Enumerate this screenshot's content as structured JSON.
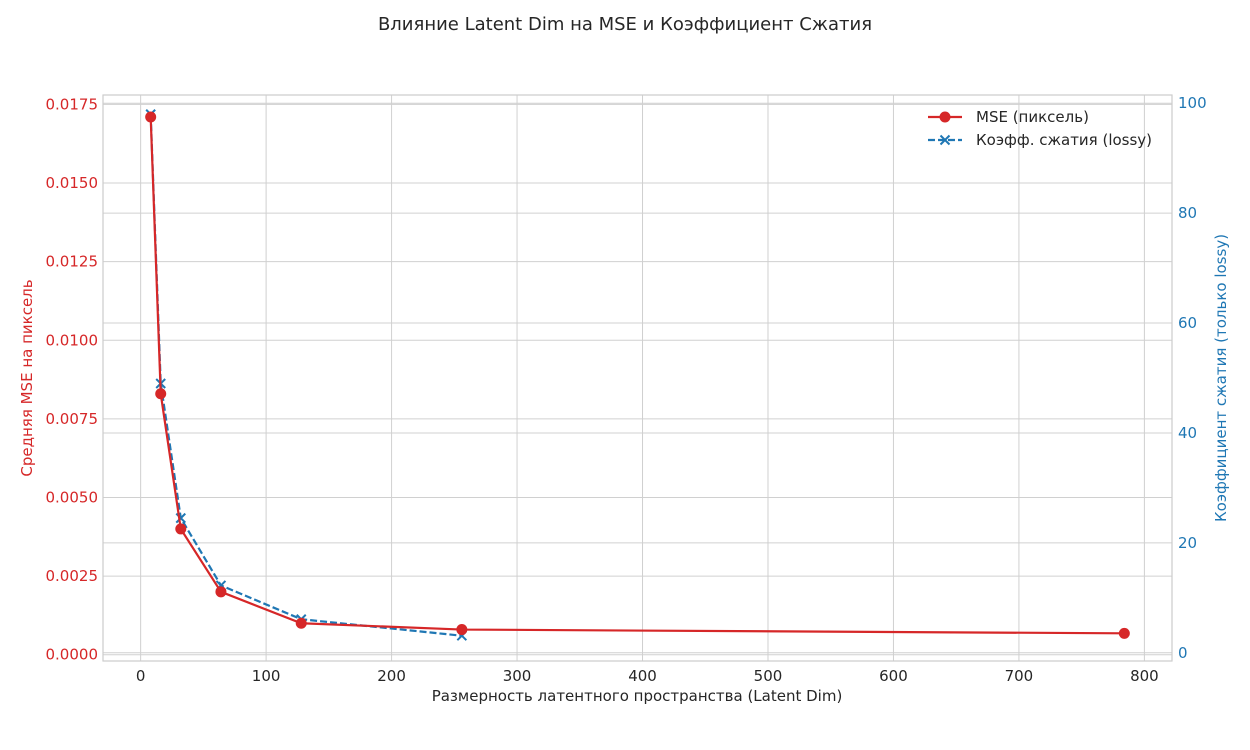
{
  "chart_data": {
    "type": "line",
    "title": "Влияние Latent Dim на MSE и Коэффициент Сжатия",
    "xlabel": "Размерность латентного пространства (Latent Dim)",
    "ylabel": "Средняя MSE на пиксель",
    "y2label": "Коэффициент сжатия (только lossy)",
    "xlim": [
      -30,
      822
    ],
    "ylim": [
      -0.0002,
      0.0178
    ],
    "y2lim": [
      -1.5,
      101.5
    ],
    "xticks": [
      0,
      100,
      200,
      300,
      400,
      500,
      600,
      700,
      800
    ],
    "xtick_labels": [
      "0",
      "100",
      "200",
      "300",
      "400",
      "500",
      "600",
      "700",
      "800"
    ],
    "yticks": [
      0.0,
      0.0025,
      0.005,
      0.0075,
      0.01,
      0.0125,
      0.015,
      0.0175
    ],
    "ytick_labels": [
      "0.0000",
      "0.0025",
      "0.0050",
      "0.0075",
      "0.0100",
      "0.0125",
      "0.0150",
      "0.0175"
    ],
    "y2ticks": [
      0,
      20,
      40,
      60,
      80,
      100
    ],
    "y2tick_labels": [
      "0",
      "20",
      "40",
      "60",
      "80",
      "100"
    ],
    "grid": true,
    "legend_position": "top-right",
    "colors": {
      "mse": "#d62728",
      "ratio": "#1f77b4",
      "grid": "#d0d0d0",
      "frame": "#cccccc",
      "text": "#262626"
    },
    "series": [
      {
        "name": "MSE (пиксель)",
        "axis": "left",
        "marker": "circle",
        "linestyle": "solid",
        "x": [
          8,
          16,
          32,
          64,
          128,
          256,
          784
        ],
        "y": [
          0.0171,
          0.0083,
          0.004,
          0.002,
          0.001,
          0.0008,
          0.00068
        ]
      },
      {
        "name": "Коэфф. сжатия (lossy)",
        "axis": "right",
        "marker": "x",
        "linestyle": "dashed",
        "x": [
          8,
          16,
          32,
          64,
          128,
          256
        ],
        "y": [
          98.0,
          49.0,
          24.5,
          12.25,
          6.1,
          3.1
        ]
      }
    ]
  }
}
